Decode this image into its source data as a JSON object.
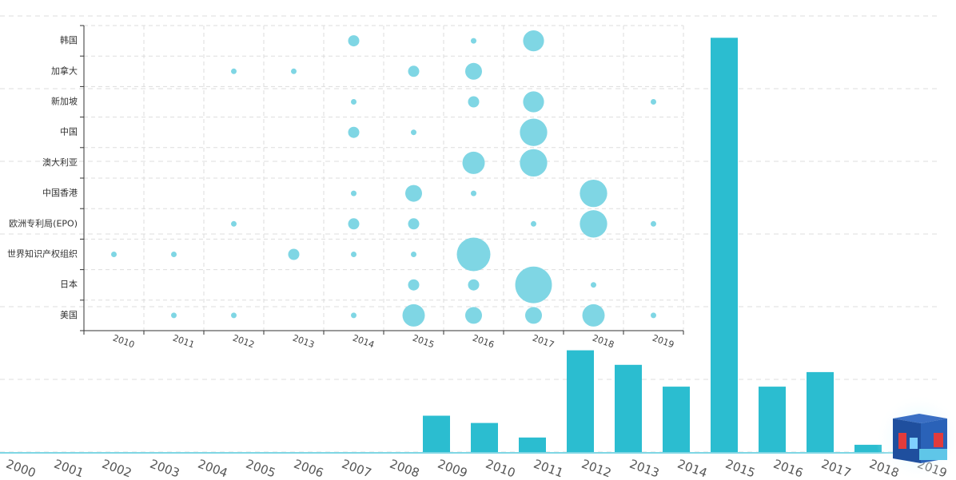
{
  "chart_data": [
    {
      "type": "bar",
      "categories": [
        "2000",
        "2001",
        "2002",
        "2003",
        "2004",
        "2005",
        "2006",
        "2007",
        "2008",
        "2009",
        "2010",
        "2011",
        "2012",
        "2013",
        "2014",
        "2015",
        "2016",
        "2017",
        "2018",
        "2019"
      ],
      "values": [
        0,
        0,
        0,
        0,
        0,
        0,
        0,
        0,
        0,
        5,
        4,
        2,
        14,
        12,
        9,
        57,
        9,
        11,
        1,
        0
      ],
      "color": "#2bbdd0",
      "ylim": [
        0,
        60
      ],
      "yticks": [
        0,
        10,
        20,
        30,
        40,
        50,
        60
      ],
      "grid": true
    },
    {
      "type": "scatter",
      "x_categories": [
        "2010",
        "2011",
        "2012",
        "2013",
        "2014",
        "2015",
        "2016",
        "2017",
        "2018",
        "2019"
      ],
      "y_categories": [
        "韩国",
        "加拿大",
        "新加坡",
        "中国",
        "澳大利亚",
        "中国香港",
        "欧洲专利局(EPO)",
        "世界知识产权组织",
        "日本",
        "美国"
      ],
      "values": [
        [
          null,
          null,
          null,
          null,
          4,
          null,
          1,
          14,
          null,
          null
        ],
        [
          null,
          null,
          1,
          1,
          null,
          4,
          9,
          null,
          null,
          null
        ],
        [
          null,
          null,
          null,
          null,
          1,
          null,
          4,
          14,
          null,
          1
        ],
        [
          null,
          null,
          null,
          null,
          4,
          1,
          null,
          24,
          null,
          null
        ],
        [
          null,
          null,
          null,
          null,
          null,
          null,
          16,
          24,
          null,
          null
        ],
        [
          null,
          null,
          null,
          null,
          1,
          9,
          1,
          null,
          24,
          null
        ],
        [
          null,
          null,
          1,
          null,
          4,
          4,
          null,
          1,
          24,
          1
        ],
        [
          1,
          1,
          null,
          4,
          1,
          1,
          36,
          null,
          null,
          null
        ],
        [
          null,
          null,
          null,
          null,
          null,
          4,
          4,
          43,
          1,
          null
        ],
        [
          null,
          1,
          1,
          null,
          1,
          16,
          9,
          9,
          16,
          1
        ]
      ],
      "color": "#7fd6e4",
      "grid": true
    }
  ]
}
